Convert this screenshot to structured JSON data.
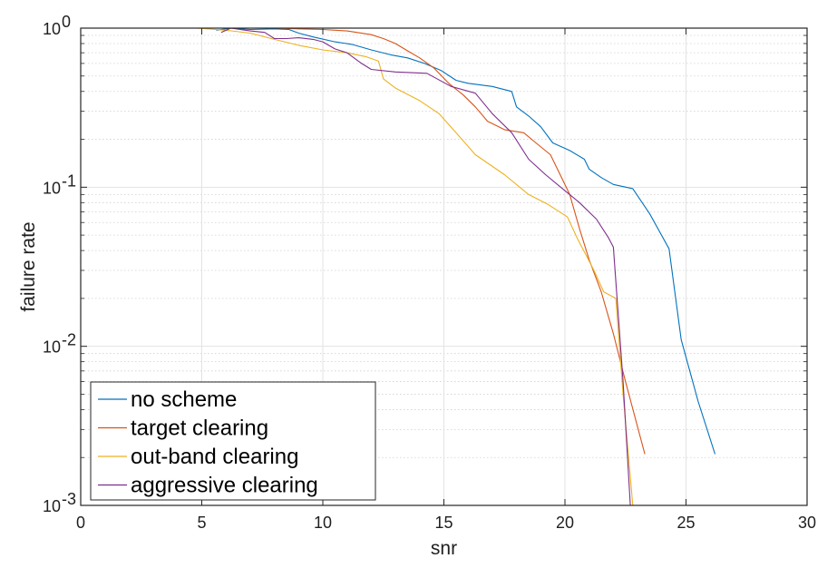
{
  "chart_data": {
    "type": "line",
    "title": "",
    "xlabel": "snr",
    "ylabel": "failure rate",
    "xlim": [
      0,
      30
    ],
    "ylim": [
      0.001,
      1
    ],
    "yscale": "log",
    "grid": true,
    "minor_grid": true,
    "legend_position": "bottom-left",
    "x_ticks": [
      0,
      5,
      10,
      15,
      20,
      25,
      30
    ],
    "x_tick_labels": [
      "0",
      "5",
      "10",
      "15",
      "20",
      "25",
      "30"
    ],
    "y_ticks": [
      {
        "value": 1,
        "base": "10",
        "exp": "0"
      },
      {
        "value": 0.1,
        "base": "10",
        "exp": "-1"
      },
      {
        "value": 0.01,
        "base": "10",
        "exp": "-2"
      },
      {
        "value": 0.001,
        "base": "10",
        "exp": "-3"
      }
    ],
    "series": [
      {
        "name": "no scheme",
        "color": "#0072BD",
        "points": [
          [
            5.6,
            0.97
          ],
          [
            6.2,
            1.0
          ],
          [
            7,
            0.98
          ],
          [
            8,
            0.99
          ],
          [
            8.6,
            0.98
          ],
          [
            9,
            0.93
          ],
          [
            9.6,
            0.88
          ],
          [
            10.5,
            0.82
          ],
          [
            11.2,
            0.79
          ],
          [
            12,
            0.73
          ],
          [
            12.8,
            0.68
          ],
          [
            13.5,
            0.65
          ],
          [
            14.2,
            0.6
          ],
          [
            14.9,
            0.54
          ],
          [
            15.5,
            0.47
          ],
          [
            16,
            0.45
          ],
          [
            17,
            0.43
          ],
          [
            17.8,
            0.4
          ],
          [
            18,
            0.32
          ],
          [
            18.5,
            0.28
          ],
          [
            19,
            0.24
          ],
          [
            19.5,
            0.19
          ],
          [
            20.2,
            0.17
          ],
          [
            20.8,
            0.15
          ],
          [
            21,
            0.13
          ],
          [
            21.5,
            0.115
          ],
          [
            22,
            0.104
          ],
          [
            22.8,
            0.098
          ],
          [
            23.5,
            0.068
          ],
          [
            24.3,
            0.041
          ],
          [
            24.8,
            0.011
          ],
          [
            25.5,
            0.0045
          ],
          [
            26.2,
            0.0021
          ]
        ]
      },
      {
        "name": "target clearing",
        "color": "#D95319",
        "points": [
          [
            4.8,
            1.0
          ],
          [
            6,
            1.0
          ],
          [
            7,
            1.0
          ],
          [
            8,
            1.0
          ],
          [
            9,
            0.99
          ],
          [
            10,
            0.98
          ],
          [
            11,
            0.96
          ],
          [
            12,
            0.91
          ],
          [
            12.5,
            0.86
          ],
          [
            13,
            0.8
          ],
          [
            13.5,
            0.72
          ],
          [
            14,
            0.65
          ],
          [
            14.6,
            0.56
          ],
          [
            15.2,
            0.45
          ],
          [
            15.8,
            0.38
          ],
          [
            16.3,
            0.32
          ],
          [
            16.8,
            0.26
          ],
          [
            17.5,
            0.23
          ],
          [
            18.3,
            0.22
          ],
          [
            18.8,
            0.19
          ],
          [
            19.4,
            0.16
          ],
          [
            19.8,
            0.12
          ],
          [
            20.2,
            0.09
          ],
          [
            20.6,
            0.055
          ],
          [
            21,
            0.035
          ],
          [
            21.5,
            0.022
          ],
          [
            22,
            0.012
          ],
          [
            22.5,
            0.006
          ],
          [
            23.3,
            0.0021
          ]
        ]
      },
      {
        "name": "out-band clearing",
        "color": "#EDB120",
        "points": [
          [
            4.8,
            1.0
          ],
          [
            6,
            0.97
          ],
          [
            7,
            0.93
          ],
          [
            8,
            0.85
          ],
          [
            9,
            0.78
          ],
          [
            10,
            0.73
          ],
          [
            11,
            0.7
          ],
          [
            11.8,
            0.66
          ],
          [
            12.3,
            0.62
          ],
          [
            12.5,
            0.48
          ],
          [
            13,
            0.42
          ],
          [
            14,
            0.35
          ],
          [
            14.8,
            0.29
          ],
          [
            15.5,
            0.22
          ],
          [
            16.3,
            0.16
          ],
          [
            17.5,
            0.12
          ],
          [
            18.5,
            0.09
          ],
          [
            19.3,
            0.078
          ],
          [
            20.1,
            0.065
          ],
          [
            20.5,
            0.048
          ],
          [
            21.2,
            0.03
          ],
          [
            21.6,
            0.022
          ],
          [
            22.1,
            0.02
          ],
          [
            22.4,
            0.005
          ],
          [
            22.8,
            0.001
          ]
        ]
      },
      {
        "name": "aggressive clearing",
        "color": "#7E2F8E",
        "points": [
          [
            5.8,
            0.94
          ],
          [
            6.2,
            1.0
          ],
          [
            7,
            0.96
          ],
          [
            7.6,
            0.94
          ],
          [
            8,
            0.86
          ],
          [
            8.5,
            0.86
          ],
          [
            9,
            0.87
          ],
          [
            9.6,
            0.85
          ],
          [
            10,
            0.82
          ],
          [
            10.5,
            0.74
          ],
          [
            11,
            0.7
          ],
          [
            11.6,
            0.6
          ],
          [
            12,
            0.55
          ],
          [
            13,
            0.53
          ],
          [
            14.3,
            0.52
          ],
          [
            15.3,
            0.43
          ],
          [
            16.3,
            0.39
          ],
          [
            17,
            0.29
          ],
          [
            17.8,
            0.22
          ],
          [
            18.5,
            0.15
          ],
          [
            19.2,
            0.12
          ],
          [
            20,
            0.095
          ],
          [
            20.6,
            0.08
          ],
          [
            21.3,
            0.063
          ],
          [
            21.8,
            0.048
          ],
          [
            22,
            0.042
          ],
          [
            22.4,
            0.006
          ],
          [
            22.7,
            0.001
          ]
        ]
      }
    ]
  }
}
